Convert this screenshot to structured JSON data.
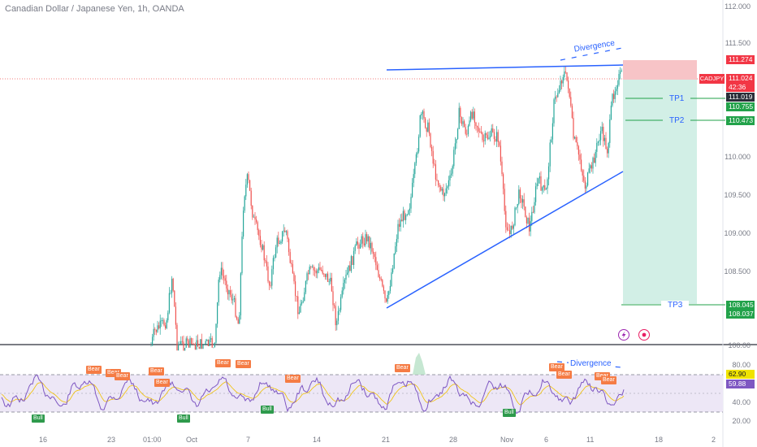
{
  "header": {
    "title": "Canadian Dollar / Japanese Yen, 1h, OANDA"
  },
  "price_axis": {
    "ticks": [
      "112.000",
      "111.500",
      "110.000",
      "109.500",
      "109.000",
      "108.500"
    ],
    "current": {
      "symbol": "CADJPY",
      "price": "111.024",
      "countdown": "42:36"
    },
    "badges": {
      "sl": "111.274",
      "entry": "111.019",
      "tp1": "110.755",
      "tp2": "110.473",
      "tp3a": "108.045",
      "tp3b": "108.037"
    }
  },
  "annotations": {
    "divergence_price": "Divergence",
    "divergence_rsi": "Divergence",
    "tp1": "TP1",
    "tp2": "TP2",
    "tp3": "TP3"
  },
  "rsi": {
    "ticks": [
      "100.00",
      "80.00",
      "40.00",
      "20.00"
    ],
    "value_rsi": "62.90",
    "value_ma": "59.88",
    "bear_label": "Bear",
    "bull_label": "Bull"
  },
  "time_axis": {
    "labels": [
      "16",
      "23",
      "01:00",
      "Oct",
      "7",
      "14",
      "21",
      "28",
      "Nov",
      "6",
      "11",
      "18",
      "2"
    ]
  },
  "colors": {
    "up": "#26a69a",
    "down": "#ef5350",
    "trendline": "#2962ff",
    "stop_zone": "#f7c4c7",
    "target_zone": "#d2efe6",
    "tp_line": "#22a24a",
    "rsi_line": "#7e57c2",
    "rsi_ma": "#f0c000",
    "bear": "#f57c45",
    "bull": "#2e9a4c"
  },
  "icons": [
    "lightning-icon",
    "target-icon"
  ]
}
